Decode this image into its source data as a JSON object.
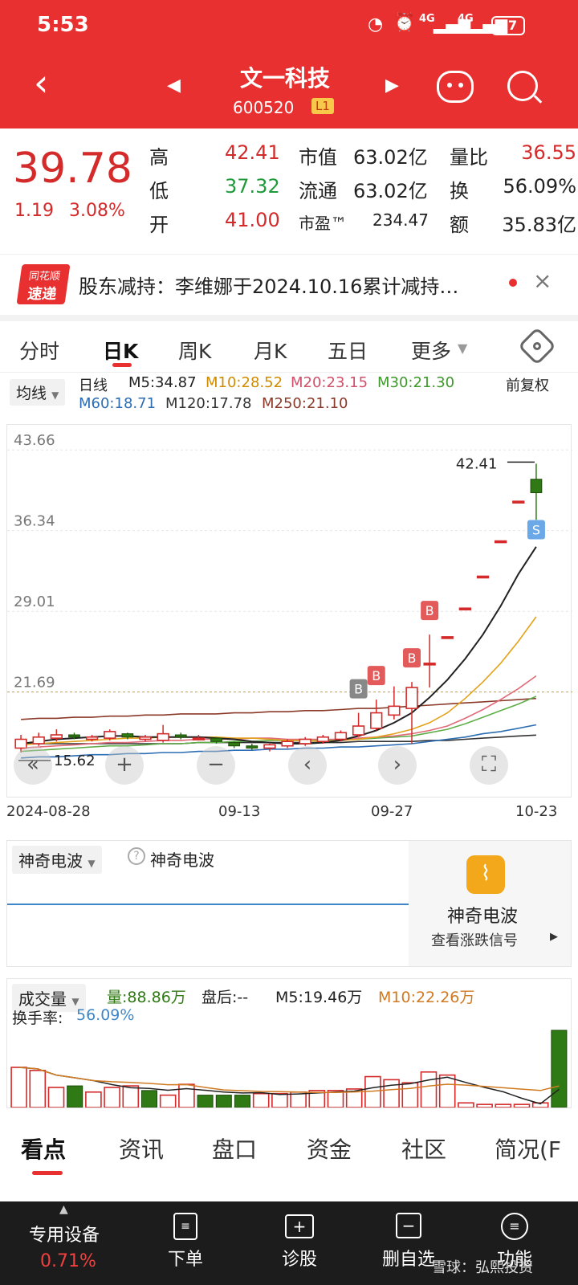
{
  "status": {
    "time": "5:53",
    "battery": "57",
    "net1": "4G",
    "net2": "4G"
  },
  "header": {
    "name": "文一科技",
    "code": "600520",
    "level": "L1"
  },
  "quote": {
    "price": "39.78",
    "change": "1.19",
    "change_pct": "3.08%",
    "high_label": "高",
    "high": "42.41",
    "low_label": "低",
    "low": "37.32",
    "open_label": "开",
    "open": "41.00",
    "mktcap_label": "市值",
    "mktcap": "63.02亿",
    "float_label": "流通",
    "float": "63.02亿",
    "pe_label": "市盈™",
    "pe": "234.47",
    "volratio_label": "量比",
    "volratio": "36.55",
    "turnover_label": "换",
    "turnover": "56.09%",
    "amount_label": "额",
    "amount": "35.83亿"
  },
  "news": {
    "logo_top": "同花顺",
    "logo_bottom": "速递",
    "text": "股东减持：李维娜于2024.10.16累计减持…",
    "close": "×"
  },
  "tabs": [
    "分时",
    "日K",
    "周K",
    "月K",
    "五日",
    "更多"
  ],
  "active_tab": 1,
  "ma_legend": {
    "selector": "均线",
    "period": "日线",
    "m5": "M5:34.87",
    "m10": "M10:28.52",
    "m20": "M20:23.15",
    "m30": "M30:21.30",
    "m60": "M60:18.71",
    "m120": "M120:17.78",
    "m250": "M250:21.10",
    "adjust": "前复权"
  },
  "colors": {
    "m5": "#222222",
    "m10": "#e3a21a",
    "m20": "#e06a78",
    "m30": "#5fae4a",
    "m60": "#2c6db3",
    "m120": "#333333",
    "m250": "#8b3a2a",
    "up": "#d42a2a",
    "down": "#2f7a14",
    "brand": "#e93030"
  },
  "chart_data": {
    "type": "candlestick",
    "y_ticks": [
      "43.66",
      "36.34",
      "29.01",
      "21.69"
    ],
    "ylim": [
      13.5,
      45.5
    ],
    "high_marker": "42.41",
    "low_marker": "15.62",
    "ref_line": 21.69,
    "x_labels": [
      "2024-08-28",
      "09-13",
      "09-27",
      "10-23"
    ],
    "candles": [
      {
        "o": 16.6,
        "c": 17.4,
        "h": 17.8,
        "l": 16.2,
        "up": true
      },
      {
        "o": 17.0,
        "c": 17.6,
        "h": 18.0,
        "l": 16.8,
        "up": true
      },
      {
        "o": 17.5,
        "c": 17.8,
        "h": 18.3,
        "l": 17.2,
        "up": true
      },
      {
        "o": 17.8,
        "c": 17.6,
        "h": 18.0,
        "l": 17.4,
        "up": false
      },
      {
        "o": 17.4,
        "c": 17.6,
        "h": 17.8,
        "l": 17.2,
        "up": true
      },
      {
        "o": 17.5,
        "c": 18.1,
        "h": 18.3,
        "l": 17.3,
        "up": true
      },
      {
        "o": 17.9,
        "c": 17.6,
        "h": 18.0,
        "l": 17.4,
        "up": false
      },
      {
        "o": 17.4,
        "c": 17.6,
        "h": 17.8,
        "l": 17.2,
        "up": true
      },
      {
        "o": 17.3,
        "c": 17.9,
        "h": 18.7,
        "l": 17.1,
        "up": true
      },
      {
        "o": 17.8,
        "c": 17.6,
        "h": 18.0,
        "l": 17.4,
        "up": false
      },
      {
        "o": 17.5,
        "c": 17.5,
        "h": 17.8,
        "l": 17.3,
        "up": true
      },
      {
        "o": 17.5,
        "c": 17.2,
        "h": 17.6,
        "l": 17.0,
        "up": false
      },
      {
        "o": 17.1,
        "c": 16.8,
        "h": 17.2,
        "l": 16.6,
        "up": false
      },
      {
        "o": 16.8,
        "c": 16.6,
        "h": 17.0,
        "l": 16.4,
        "up": false
      },
      {
        "o": 16.6,
        "c": 16.9,
        "h": 17.0,
        "l": 16.3,
        "up": true
      },
      {
        "o": 16.8,
        "c": 17.2,
        "h": 17.4,
        "l": 16.6,
        "up": true
      },
      {
        "o": 17.0,
        "c": 17.4,
        "h": 17.6,
        "l": 16.8,
        "up": true
      },
      {
        "o": 17.2,
        "c": 17.6,
        "h": 17.8,
        "l": 17.0,
        "up": true
      },
      {
        "o": 17.4,
        "c": 18.0,
        "h": 18.2,
        "l": 17.2,
        "up": true
      },
      {
        "o": 17.8,
        "c": 18.6,
        "h": 19.8,
        "l": 17.6,
        "up": true
      },
      {
        "o": 18.4,
        "c": 19.8,
        "h": 21.0,
        "l": 18.2,
        "up": true
      },
      {
        "o": 19.6,
        "c": 20.4,
        "h": 22.2,
        "l": 19.2,
        "up": true
      },
      {
        "o": 20.2,
        "c": 22.1,
        "h": 22.6,
        "l": 17.0,
        "up": true
      },
      {
        "o": 24.3,
        "c": 24.3,
        "h": 26.9,
        "l": 22.1,
        "up": true
      },
      {
        "o": 26.7,
        "c": 26.7,
        "h": 26.7,
        "l": 26.7,
        "up": true
      },
      {
        "o": 29.3,
        "c": 29.3,
        "h": 29.3,
        "l": 29.3,
        "up": true
      },
      {
        "o": 32.2,
        "c": 32.2,
        "h": 32.2,
        "l": 32.2,
        "up": true
      },
      {
        "o": 35.4,
        "c": 35.4,
        "h": 35.4,
        "l": 35.4,
        "up": true
      },
      {
        "o": 39.0,
        "c": 39.0,
        "h": 39.0,
        "l": 39.0,
        "up": true
      },
      {
        "o": 41.0,
        "c": 39.78,
        "h": 42.41,
        "l": 37.32,
        "up": false
      }
    ],
    "ma": {
      "m5": [
        17.0,
        17.2,
        17.4,
        17.5,
        17.6,
        17.7,
        17.7,
        17.6,
        17.6,
        17.6,
        17.6,
        17.5,
        17.4,
        17.2,
        17.1,
        17.0,
        17.0,
        17.1,
        17.3,
        17.7,
        18.2,
        18.9,
        19.8,
        21.2,
        22.8,
        24.7,
        26.9,
        29.5,
        32.4,
        34.87
      ],
      "m10": [
        16.9,
        17.0,
        17.1,
        17.2,
        17.3,
        17.4,
        17.5,
        17.5,
        17.6,
        17.6,
        17.6,
        17.6,
        17.5,
        17.5,
        17.4,
        17.3,
        17.3,
        17.2,
        17.3,
        17.4,
        17.6,
        17.9,
        18.3,
        18.9,
        19.8,
        21.1,
        22.6,
        24.3,
        26.3,
        28.52
      ],
      "m20": [
        16.6,
        16.7,
        16.8,
        16.9,
        17.0,
        17.1,
        17.1,
        17.2,
        17.3,
        17.3,
        17.4,
        17.4,
        17.4,
        17.5,
        17.5,
        17.4,
        17.4,
        17.4,
        17.4,
        17.5,
        17.6,
        17.7,
        17.9,
        18.2,
        18.6,
        19.3,
        20.1,
        21.0,
        22.0,
        23.15
      ],
      "m30": [
        16.3,
        16.4,
        16.5,
        16.6,
        16.7,
        16.8,
        16.8,
        16.9,
        17.0,
        17.0,
        17.1,
        17.1,
        17.2,
        17.2,
        17.3,
        17.3,
        17.3,
        17.3,
        17.4,
        17.4,
        17.5,
        17.6,
        17.7,
        18.0,
        18.3,
        18.8,
        19.4,
        20.0,
        20.6,
        21.3
      ],
      "m60": [
        15.7,
        15.8,
        15.8,
        15.9,
        16.0,
        16.0,
        16.1,
        16.1,
        16.2,
        16.2,
        16.3,
        16.3,
        16.4,
        16.4,
        16.5,
        16.5,
        16.6,
        16.6,
        16.7,
        16.7,
        16.8,
        16.9,
        17.0,
        17.2,
        17.4,
        17.6,
        17.9,
        18.1,
        18.4,
        18.71
      ],
      "m120": [
        17.0,
        17.0,
        17.0,
        17.0,
        17.0,
        17.0,
        17.0,
        17.0,
        17.0,
        17.0,
        17.1,
        17.1,
        17.1,
        17.1,
        17.1,
        17.1,
        17.1,
        17.1,
        17.1,
        17.2,
        17.2,
        17.2,
        17.2,
        17.3,
        17.3,
        17.4,
        17.5,
        17.6,
        17.7,
        17.78
      ],
      "m250": [
        19.2,
        19.3,
        19.3,
        19.4,
        19.4,
        19.5,
        19.5,
        19.6,
        19.6,
        19.7,
        19.7,
        19.7,
        19.8,
        19.8,
        19.9,
        19.9,
        20.0,
        20.0,
        20.1,
        20.2,
        20.2,
        20.3,
        20.4,
        20.5,
        20.6,
        20.7,
        20.8,
        20.9,
        21.0,
        21.1
      ]
    },
    "signals": [
      {
        "i": 19,
        "label": "B",
        "kind": "buy-gray"
      },
      {
        "i": 20,
        "label": "B",
        "kind": "buy"
      },
      {
        "i": 22,
        "label": "B",
        "kind": "buy"
      },
      {
        "i": 23,
        "label": "B",
        "kind": "buy"
      },
      {
        "i": 29,
        "label": "S",
        "kind": "sell"
      }
    ]
  },
  "wave": {
    "selector": "神奇电波",
    "title": "神奇电波",
    "card_title": "神奇电波",
    "card_link": "查看涨跌信号"
  },
  "volume": {
    "selector": "成交量",
    "vol": "量:88.86万",
    "after": "盘后:--",
    "m5": "M5:19.46万",
    "m10": "M10:22.26万",
    "turnover_label": "换手率:",
    "turnover": "56.09%",
    "bars": [
      {
        "v": 26,
        "up": true
      },
      {
        "v": 24,
        "up": true
      },
      {
        "v": 13,
        "up": true
      },
      {
        "v": 14,
        "up": false
      },
      {
        "v": 10,
        "up": true
      },
      {
        "v": 13,
        "up": true
      },
      {
        "v": 14,
        "up": true
      },
      {
        "v": 11,
        "up": false
      },
      {
        "v": 8,
        "up": true
      },
      {
        "v": 15,
        "up": true
      },
      {
        "v": 8,
        "up": false
      },
      {
        "v": 8,
        "up": false
      },
      {
        "v": 8,
        "up": false
      },
      {
        "v": 9,
        "up": true
      },
      {
        "v": 9,
        "up": true
      },
      {
        "v": 10,
        "up": true
      },
      {
        "v": 11,
        "up": true
      },
      {
        "v": 11,
        "up": true
      },
      {
        "v": 12,
        "up": true
      },
      {
        "v": 20,
        "up": true
      },
      {
        "v": 18,
        "up": true
      },
      {
        "v": 16,
        "up": true
      },
      {
        "v": 23,
        "up": true
      },
      {
        "v": 21,
        "up": true
      },
      {
        "v": 3,
        "up": true
      },
      {
        "v": 2,
        "up": true
      },
      {
        "v": 2,
        "up": true
      },
      {
        "v": 2,
        "up": true
      },
      {
        "v": 3,
        "up": true
      },
      {
        "v": 50,
        "up": false
      }
    ]
  },
  "bottom_tabs": [
    "看点",
    "资讯",
    "盘口",
    "资金",
    "社区",
    "简况(F"
  ],
  "footer": {
    "device_label": "专用设备",
    "device_pct": "0.71%",
    "order": "下单",
    "diagnose": "诊股",
    "remove": "删自选",
    "function": "功能",
    "watermark": "雪球：弘熙投资"
  }
}
